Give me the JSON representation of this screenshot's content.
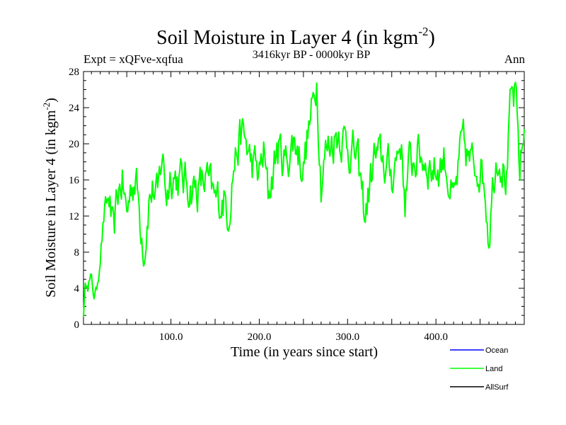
{
  "title": {
    "main": "Soil Moisture in Layer 4 (in kgm",
    "sup": "-2",
    "close": ")"
  },
  "subtitle_left": "Expt = xQFve-xqfua",
  "subtitle_center": "3416kyr BP - 0000kyr BP",
  "subtitle_right": "Ann",
  "chart_data": {
    "type": "line",
    "title": "Soil Moisture in Layer 4 (in kgm-2)",
    "xlabel": "Time (in years since start)",
    "ylabel": "Soil Moisture in Layer 4 (in kgm-2)",
    "xlim": [
      1,
      500
    ],
    "ylim": [
      0,
      28
    ],
    "xticks": [
      100,
      200,
      300,
      400
    ],
    "xtick_labels": [
      "100.0",
      "200.0",
      "300.0",
      "400.0"
    ],
    "yticks": [
      0,
      4,
      8,
      12,
      16,
      20,
      24,
      28
    ],
    "ytick_labels": [
      "0",
      "4",
      "8",
      "12",
      "16",
      "20",
      "24",
      "28"
    ],
    "legend": [
      {
        "name": "Ocean",
        "color": "#0000ff"
      },
      {
        "name": "Land",
        "color": "#00ff00"
      },
      {
        "name": "AllSurf",
        "color": "#000000"
      }
    ],
    "series": [
      {
        "name": "Land",
        "color": "#00ff00",
        "x": [
          1,
          5,
          10,
          15,
          20,
          25,
          30,
          35,
          40,
          45,
          50,
          55,
          60,
          65,
          70,
          75,
          80,
          85,
          90,
          95,
          100,
          110,
          120,
          130,
          140,
          150,
          160,
          165,
          170,
          175,
          180,
          185,
          190,
          200,
          205,
          210,
          220,
          230,
          240,
          250,
          255,
          260,
          265,
          270,
          275,
          280,
          290,
          300,
          310,
          320,
          330,
          340,
          350,
          360,
          365,
          370,
          380,
          390,
          400,
          410,
          420,
          430,
          440,
          450,
          455,
          460,
          465,
          470,
          475,
          480,
          485,
          490,
          495,
          500
        ],
        "values": [
          1.5,
          5.5,
          4.5,
          3.0,
          8.0,
          12.5,
          14.0,
          9.0,
          14.5,
          16.0,
          12.0,
          15.5,
          16.5,
          12.0,
          8.5,
          14.0,
          15.0,
          13.5,
          19.0,
          14.5,
          17.0,
          16.0,
          15.5,
          15.0,
          16.0,
          13.5,
          14.0,
          12.5,
          17.0,
          19.5,
          21.0,
          20.0,
          18.0,
          16.5,
          19.0,
          14.0,
          19.5,
          18.0,
          20.5,
          17.5,
          21.0,
          23.5,
          27.5,
          16.0,
          19.0,
          20.0,
          21.5,
          20.0,
          18.5,
          12.0,
          18.5,
          18.0,
          16.5,
          20.5,
          14.0,
          17.5,
          19.0,
          18.0,
          17.0,
          18.5,
          13.0,
          20.0,
          17.5,
          18.0,
          16.0,
          10.0,
          16.5,
          19.5,
          18.0,
          16.0,
          24.5,
          25.0,
          17.0,
          21.5
        ]
      }
    ]
  }
}
